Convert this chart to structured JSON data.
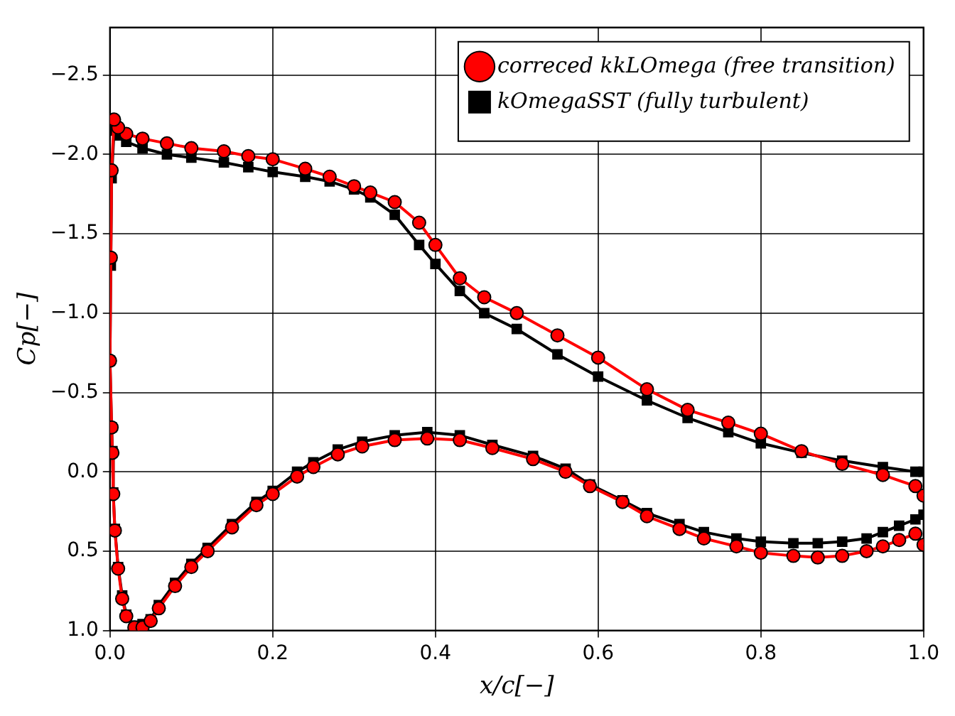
{
  "chart_data": {
    "type": "line",
    "xlabel": "x/c[−]",
    "ylabel": "Cp[−]",
    "x": [
      1.0,
      0.99,
      0.95,
      0.9,
      0.85,
      0.8,
      0.76,
      0.71,
      0.66,
      0.6,
      0.55,
      0.5,
      0.46,
      0.43,
      0.4,
      0.38,
      0.35,
      0.32,
      0.3,
      0.27,
      0.24,
      0.2,
      0.17,
      0.14,
      0.1,
      0.07,
      0.04,
      0.02,
      0.01,
      0.005,
      0.002,
      0.001,
      0,
      0.002,
      0.003,
      0.004,
      0.006,
      0.01,
      0.015,
      0.02,
      0.03,
      0.04,
      0.05,
      0.06,
      0.08,
      0.1,
      0.12,
      0.15,
      0.18,
      0.2,
      0.23,
      0.25,
      0.28,
      0.31,
      0.35,
      0.39,
      0.43,
      0.47,
      0.52,
      0.56,
      0.59,
      0.63,
      0.66,
      0.7,
      0.73,
      0.77,
      0.8,
      0.84,
      0.87,
      0.9,
      0.93,
      0.95,
      0.97,
      0.99,
      1.0
    ],
    "series": [
      {
        "name": "correced kkLOmega (free transition)",
        "color": "#ff0000",
        "marker": "circle",
        "values": [
          0.15,
          0.09,
          0.02,
          -0.05,
          -0.13,
          -0.24,
          -0.31,
          -0.39,
          -0.52,
          -0.72,
          -0.86,
          -1.0,
          -1.1,
          -1.22,
          -1.43,
          -1.57,
          -1.7,
          -1.76,
          -1.8,
          -1.86,
          -1.91,
          -1.97,
          -1.99,
          -2.02,
          -2.04,
          -2.07,
          -2.1,
          -2.13,
          -2.17,
          -2.22,
          -1.9,
          -1.35,
          -0.7,
          -0.28,
          -0.12,
          0.14,
          0.37,
          0.61,
          0.8,
          0.91,
          0.98,
          0.98,
          0.94,
          0.86,
          0.72,
          0.6,
          0.5,
          0.35,
          0.21,
          0.14,
          0.03,
          -0.03,
          -0.11,
          -0.16,
          -0.2,
          -0.21,
          -0.2,
          -0.15,
          -0.08,
          0.0,
          0.09,
          0.19,
          0.28,
          0.36,
          0.42,
          0.47,
          0.51,
          0.53,
          0.54,
          0.53,
          0.5,
          0.47,
          0.43,
          0.39,
          0.46
        ]
      },
      {
        "name": "kOmegaSST (fully turbulent)",
        "color": "#000000",
        "marker": "square",
        "values": [
          0.0,
          0.0,
          -0.03,
          -0.07,
          -0.12,
          -0.18,
          -0.25,
          -0.34,
          -0.45,
          -0.6,
          -0.74,
          -0.9,
          -1.0,
          -1.14,
          -1.31,
          -1.43,
          -1.62,
          -1.73,
          -1.78,
          -1.83,
          -1.86,
          -1.89,
          -1.92,
          -1.95,
          -1.98,
          -2.0,
          -2.04,
          -2.08,
          -2.12,
          -2.15,
          -1.85,
          -1.3,
          -0.7,
          -0.28,
          -0.13,
          0.13,
          0.36,
          0.6,
          0.78,
          0.9,
          0.97,
          0.96,
          0.93,
          0.84,
          0.7,
          0.58,
          0.48,
          0.33,
          0.19,
          0.12,
          0.0,
          -0.06,
          -0.14,
          -0.19,
          -0.23,
          -0.25,
          -0.23,
          -0.17,
          -0.1,
          -0.02,
          0.08,
          0.18,
          0.26,
          0.33,
          0.38,
          0.42,
          0.44,
          0.45,
          0.45,
          0.44,
          0.42,
          0.38,
          0.34,
          0.3,
          0.27
        ]
      }
    ],
    "xlim": [
      0,
      1
    ],
    "xticks": [
      {
        "value": 0,
        "label": "0.0"
      },
      {
        "value": 0.2,
        "label": "0.2"
      },
      {
        "value": 0.4,
        "label": "0.4"
      },
      {
        "value": 0.6,
        "label": "0.6"
      },
      {
        "value": 0.8,
        "label": "0.8"
      },
      {
        "value": 1,
        "label": "1.0"
      }
    ],
    "ylim": [
      1.0,
      -2.8
    ],
    "yticks": [
      {
        "value": -2.5,
        "label": "−2.5"
      },
      {
        "value": -2.0,
        "label": "−2.0"
      },
      {
        "value": -1.5,
        "label": "−1.5"
      },
      {
        "value": -1.0,
        "label": "−1.0"
      },
      {
        "value": -0.5,
        "label": "−0.5"
      },
      {
        "value": 0,
        "label": "0.0"
      },
      {
        "value": 0.5,
        "label": "0.5"
      },
      {
        "value": 1.0,
        "label": "1.0"
      }
    ],
    "grid": true,
    "legend": "top right",
    "line_style": "solid"
  }
}
